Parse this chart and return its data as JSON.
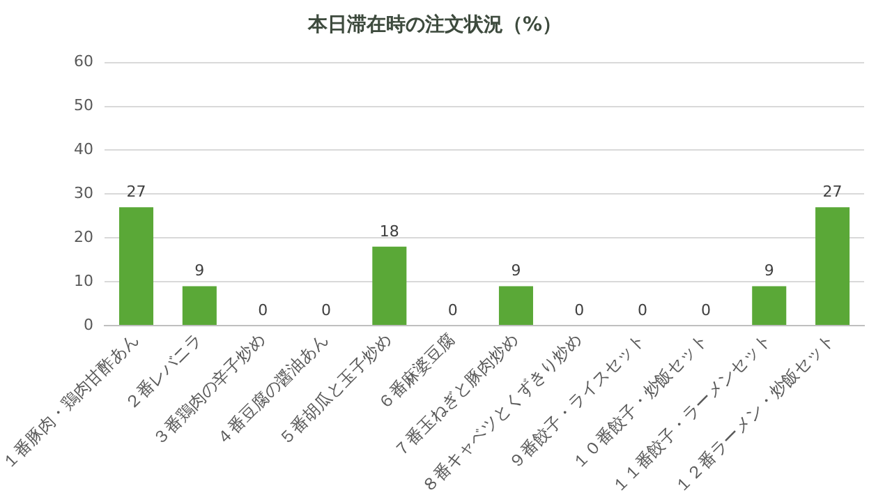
{
  "chart_data": {
    "type": "bar",
    "title": "本日滞在時の注文状況（%）",
    "categories": [
      "１番豚肉・鶏肉甘酢あん",
      "２番レバニラ",
      "３番鶏肉の辛子炒め",
      "４番豆腐の醤油あん",
      "５番胡瓜と玉子炒め",
      "６番麻婆豆腐",
      "７番玉ねぎと豚肉炒め",
      "８番キャベツとくずきり炒め",
      "９番餃子・ライスセット",
      "１０番餃子・炒飯セット",
      "１１番餃子・ラーメンセット",
      "１２番ラーメン・炒飯セット"
    ],
    "values": [
      27,
      9,
      0,
      0,
      18,
      0,
      9,
      0,
      0,
      0,
      9,
      27
    ],
    "color": "#5aa837",
    "ylim": [
      0,
      60
    ],
    "yticks": [
      0,
      10,
      20,
      30,
      40,
      50,
      60
    ],
    "grid": "y",
    "data_labels": true
  }
}
